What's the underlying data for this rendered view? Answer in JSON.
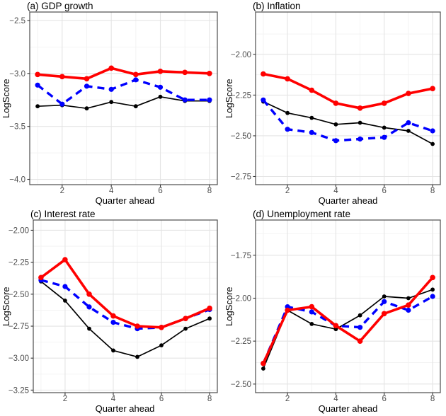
{
  "figure": {
    "background": "#ffffff",
    "panel_border_color": "#4d4d4d",
    "grid_major_color": "#e4e4e4",
    "grid_minor_color": "#f2f2f2",
    "tick_mark_color": "#333333",
    "axis_text_color": "#4d4d4d",
    "title_color": "#000000"
  },
  "chart_data": [
    {
      "id": "a",
      "type": "line",
      "title": "(a) GDP growth",
      "xlabel": "Quarter ahead",
      "ylabel": "LogScore",
      "grid": true,
      "legend": "none",
      "x": [
        1,
        2,
        3,
        4,
        5,
        6,
        7,
        8
      ],
      "xlim": [
        0.68,
        8.32
      ],
      "xticks": [
        2,
        4,
        6,
        8
      ],
      "xtick_labels": [
        "2",
        "4",
        "6",
        "8"
      ],
      "xminor": [
        1,
        3,
        5,
        7
      ],
      "ylim": [
        -4.05,
        -2.42
      ],
      "yticks": [
        -2.5,
        -3.0,
        -3.5,
        -4.0
      ],
      "ytick_labels": [
        "−2.5",
        "−3.0",
        "−3.5",
        "−4.0"
      ],
      "yminor": [
        -2.75,
        -3.25,
        -3.75
      ],
      "series": [
        {
          "name": "black-solid-line",
          "color": "#000000",
          "dash": "solid",
          "values": [
            -3.31,
            -3.3,
            -3.33,
            -3.27,
            -3.31,
            -3.22,
            -3.26,
            -3.26
          ]
        },
        {
          "name": "blue-dashed-line",
          "color": "#0000ff",
          "dash": "dashed",
          "values": [
            -3.11,
            -3.29,
            -3.12,
            -3.15,
            -3.06,
            -3.13,
            -3.25,
            -3.25
          ]
        },
        {
          "name": "red-solid-line",
          "color": "#ff0000",
          "dash": "solid",
          "values": [
            -3.01,
            -3.03,
            -3.05,
            -2.95,
            -3.01,
            -2.98,
            -2.99,
            -3.0
          ]
        }
      ]
    },
    {
      "id": "b",
      "type": "line",
      "title": "(b) Inflation",
      "xlabel": "Quarter ahead",
      "ylabel": "LogScore",
      "grid": true,
      "legend": "none",
      "x": [
        1,
        2,
        3,
        4,
        5,
        6,
        7,
        8
      ],
      "xlim": [
        0.68,
        8.32
      ],
      "xticks": [
        2,
        4,
        6,
        8
      ],
      "xtick_labels": [
        "2",
        "4",
        "6",
        "8"
      ],
      "xminor": [
        1,
        3,
        5,
        7
      ],
      "ylim": [
        -2.8,
        -1.74
      ],
      "yticks": [
        -2.0,
        -2.25,
        -2.5,
        -2.75
      ],
      "ytick_labels": [
        "−2.00",
        "−2.25",
        "−2.50",
        "−2.75"
      ],
      "yminor": [
        -1.875,
        -2.125,
        -2.375,
        -2.625
      ],
      "series": [
        {
          "name": "black-solid-line",
          "color": "#000000",
          "dash": "solid",
          "values": [
            -2.29,
            -2.36,
            -2.39,
            -2.43,
            -2.42,
            -2.45,
            -2.47,
            -2.55
          ]
        },
        {
          "name": "blue-dashed-line",
          "color": "#0000ff",
          "dash": "dashed",
          "values": [
            -2.28,
            -2.46,
            -2.48,
            -2.53,
            -2.52,
            -2.51,
            -2.42,
            -2.47
          ]
        },
        {
          "name": "red-solid-line",
          "color": "#ff0000",
          "dash": "solid",
          "values": [
            -2.12,
            -2.15,
            -2.22,
            -2.3,
            -2.33,
            -2.3,
            -2.24,
            -2.21
          ]
        }
      ]
    },
    {
      "id": "c",
      "type": "line",
      "title": "(c) Interest rate",
      "xlabel": "Quarter ahead",
      "ylabel": "LogScore",
      "grid": true,
      "legend": "none",
      "x": [
        1,
        2,
        3,
        4,
        5,
        6,
        7,
        8
      ],
      "xlim": [
        0.68,
        8.32
      ],
      "xticks": [
        2,
        4,
        6,
        8
      ],
      "xtick_labels": [
        "2",
        "4",
        "6",
        "8"
      ],
      "xminor": [
        1,
        3,
        5,
        7
      ],
      "ylim": [
        -3.27,
        -1.92
      ],
      "yticks": [
        -2.0,
        -2.25,
        -2.5,
        -2.75,
        -3.0,
        -3.25
      ],
      "ytick_labels": [
        "−2.00",
        "−2.25",
        "−2.50",
        "−2.75",
        "−3.00",
        "−3.25"
      ],
      "yminor": [
        -2.125,
        -2.375,
        -2.625,
        -2.875,
        -3.125
      ],
      "series": [
        {
          "name": "black-solid-line",
          "color": "#000000",
          "dash": "solid",
          "values": [
            -2.4,
            -2.55,
            -2.77,
            -2.94,
            -2.99,
            -2.9,
            -2.77,
            -2.69
          ]
        },
        {
          "name": "blue-dashed-line",
          "color": "#0000ff",
          "dash": "dashed",
          "values": [
            -2.39,
            -2.44,
            -2.6,
            -2.72,
            -2.77,
            -2.76,
            -2.69,
            -2.62
          ]
        },
        {
          "name": "red-solid-line",
          "color": "#ff0000",
          "dash": "solid",
          "values": [
            -2.37,
            -2.23,
            -2.5,
            -2.67,
            -2.75,
            -2.76,
            -2.69,
            -2.61
          ]
        }
      ]
    },
    {
      "id": "d",
      "type": "line",
      "title": "(d) Unemployment rate",
      "xlabel": "Quarter ahead",
      "ylabel": "LogScore",
      "grid": true,
      "legend": "none",
      "x": [
        1,
        2,
        3,
        4,
        5,
        6,
        7,
        8
      ],
      "xlim": [
        0.68,
        8.32
      ],
      "xticks": [
        2,
        4,
        6,
        8
      ],
      "xtick_labels": [
        "2",
        "4",
        "6",
        "8"
      ],
      "xminor": [
        1,
        3,
        5,
        7
      ],
      "ylim": [
        -2.55,
        -1.545
      ],
      "yticks": [
        -1.75,
        -2.0,
        -2.25,
        -2.5
      ],
      "ytick_labels": [
        "−1.75",
        "−2.00",
        "−2.25",
        "−2.50"
      ],
      "yminor": [
        -1.625,
        -1.875,
        -2.125,
        -2.375
      ],
      "series": [
        {
          "name": "black-solid-line",
          "color": "#000000",
          "dash": "solid",
          "values": [
            -2.41,
            -2.07,
            -2.15,
            -2.18,
            -2.1,
            -1.99,
            -2.0,
            -1.95
          ]
        },
        {
          "name": "blue-dashed-line",
          "color": "#0000ff",
          "dash": "dashed",
          "values": [
            -2.38,
            -2.05,
            -2.08,
            -2.16,
            -2.17,
            -2.02,
            -2.07,
            -1.99
          ]
        },
        {
          "name": "red-solid-line",
          "color": "#ff0000",
          "dash": "solid",
          "values": [
            -2.38,
            -2.07,
            -2.05,
            -2.16,
            -2.25,
            -2.09,
            -2.04,
            -1.88
          ]
        }
      ]
    }
  ]
}
